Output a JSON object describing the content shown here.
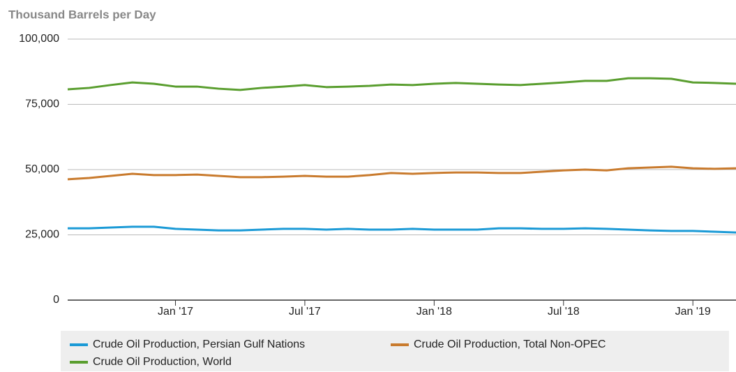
{
  "chart_data": {
    "type": "line",
    "y_axis_label": "Thousand Barrels per Day",
    "categories": [
      null,
      null,
      null,
      null,
      null,
      "Jan '17",
      null,
      null,
      null,
      null,
      null,
      "Jul '17",
      null,
      null,
      null,
      null,
      null,
      "Jan '18",
      null,
      null,
      null,
      null,
      null,
      "Jul '18",
      null,
      null,
      null,
      null,
      null,
      "Jan '19",
      null,
      null
    ],
    "ylim": [
      0,
      100000
    ],
    "yticks": [
      0,
      {
        "value": 25000,
        "label": "25,000"
      },
      {
        "value": 50000,
        "label": "50,000"
      },
      {
        "value": 75000,
        "label": "75,000"
      },
      {
        "value": 100000,
        "label": "100,000"
      }
    ],
    "grid": true,
    "legend": "bottom",
    "series": [
      {
        "name": "Crude Oil Production, Persian Gulf Nations",
        "color": "#1b9ad6",
        "values": [
          27500,
          27500,
          27800,
          28100,
          28100,
          27300,
          27000,
          26700,
          26700,
          27000,
          27300,
          27300,
          27000,
          27300,
          27000,
          27000,
          27300,
          27000,
          27000,
          27000,
          27500,
          27500,
          27300,
          27300,
          27500,
          27300,
          27000,
          26700,
          26500,
          26500,
          26200,
          25900
        ]
      },
      {
        "name": "Crude Oil Production, Total Non-OPEC",
        "color": "#c97b2e",
        "values": [
          46300,
          46800,
          47600,
          48400,
          47900,
          47900,
          48100,
          47600,
          47100,
          47100,
          47300,
          47600,
          47300,
          47300,
          47900,
          48700,
          48400,
          48700,
          48900,
          48900,
          48700,
          48700,
          49200,
          49700,
          50000,
          49700,
          50500,
          50800,
          51100,
          50500,
          50300,
          50500
        ]
      },
      {
        "name": "Crude Oil Production, World",
        "color": "#5a9e2f",
        "values": [
          80750,
          81300,
          82400,
          83400,
          82900,
          81800,
          81800,
          81000,
          80500,
          81300,
          81800,
          82400,
          81600,
          81800,
          82100,
          82600,
          82400,
          82900,
          83200,
          82900,
          82600,
          82400,
          82900,
          83400,
          84000,
          84000,
          85000,
          85000,
          84800,
          83400,
          83200,
          82900
        ]
      }
    ]
  }
}
